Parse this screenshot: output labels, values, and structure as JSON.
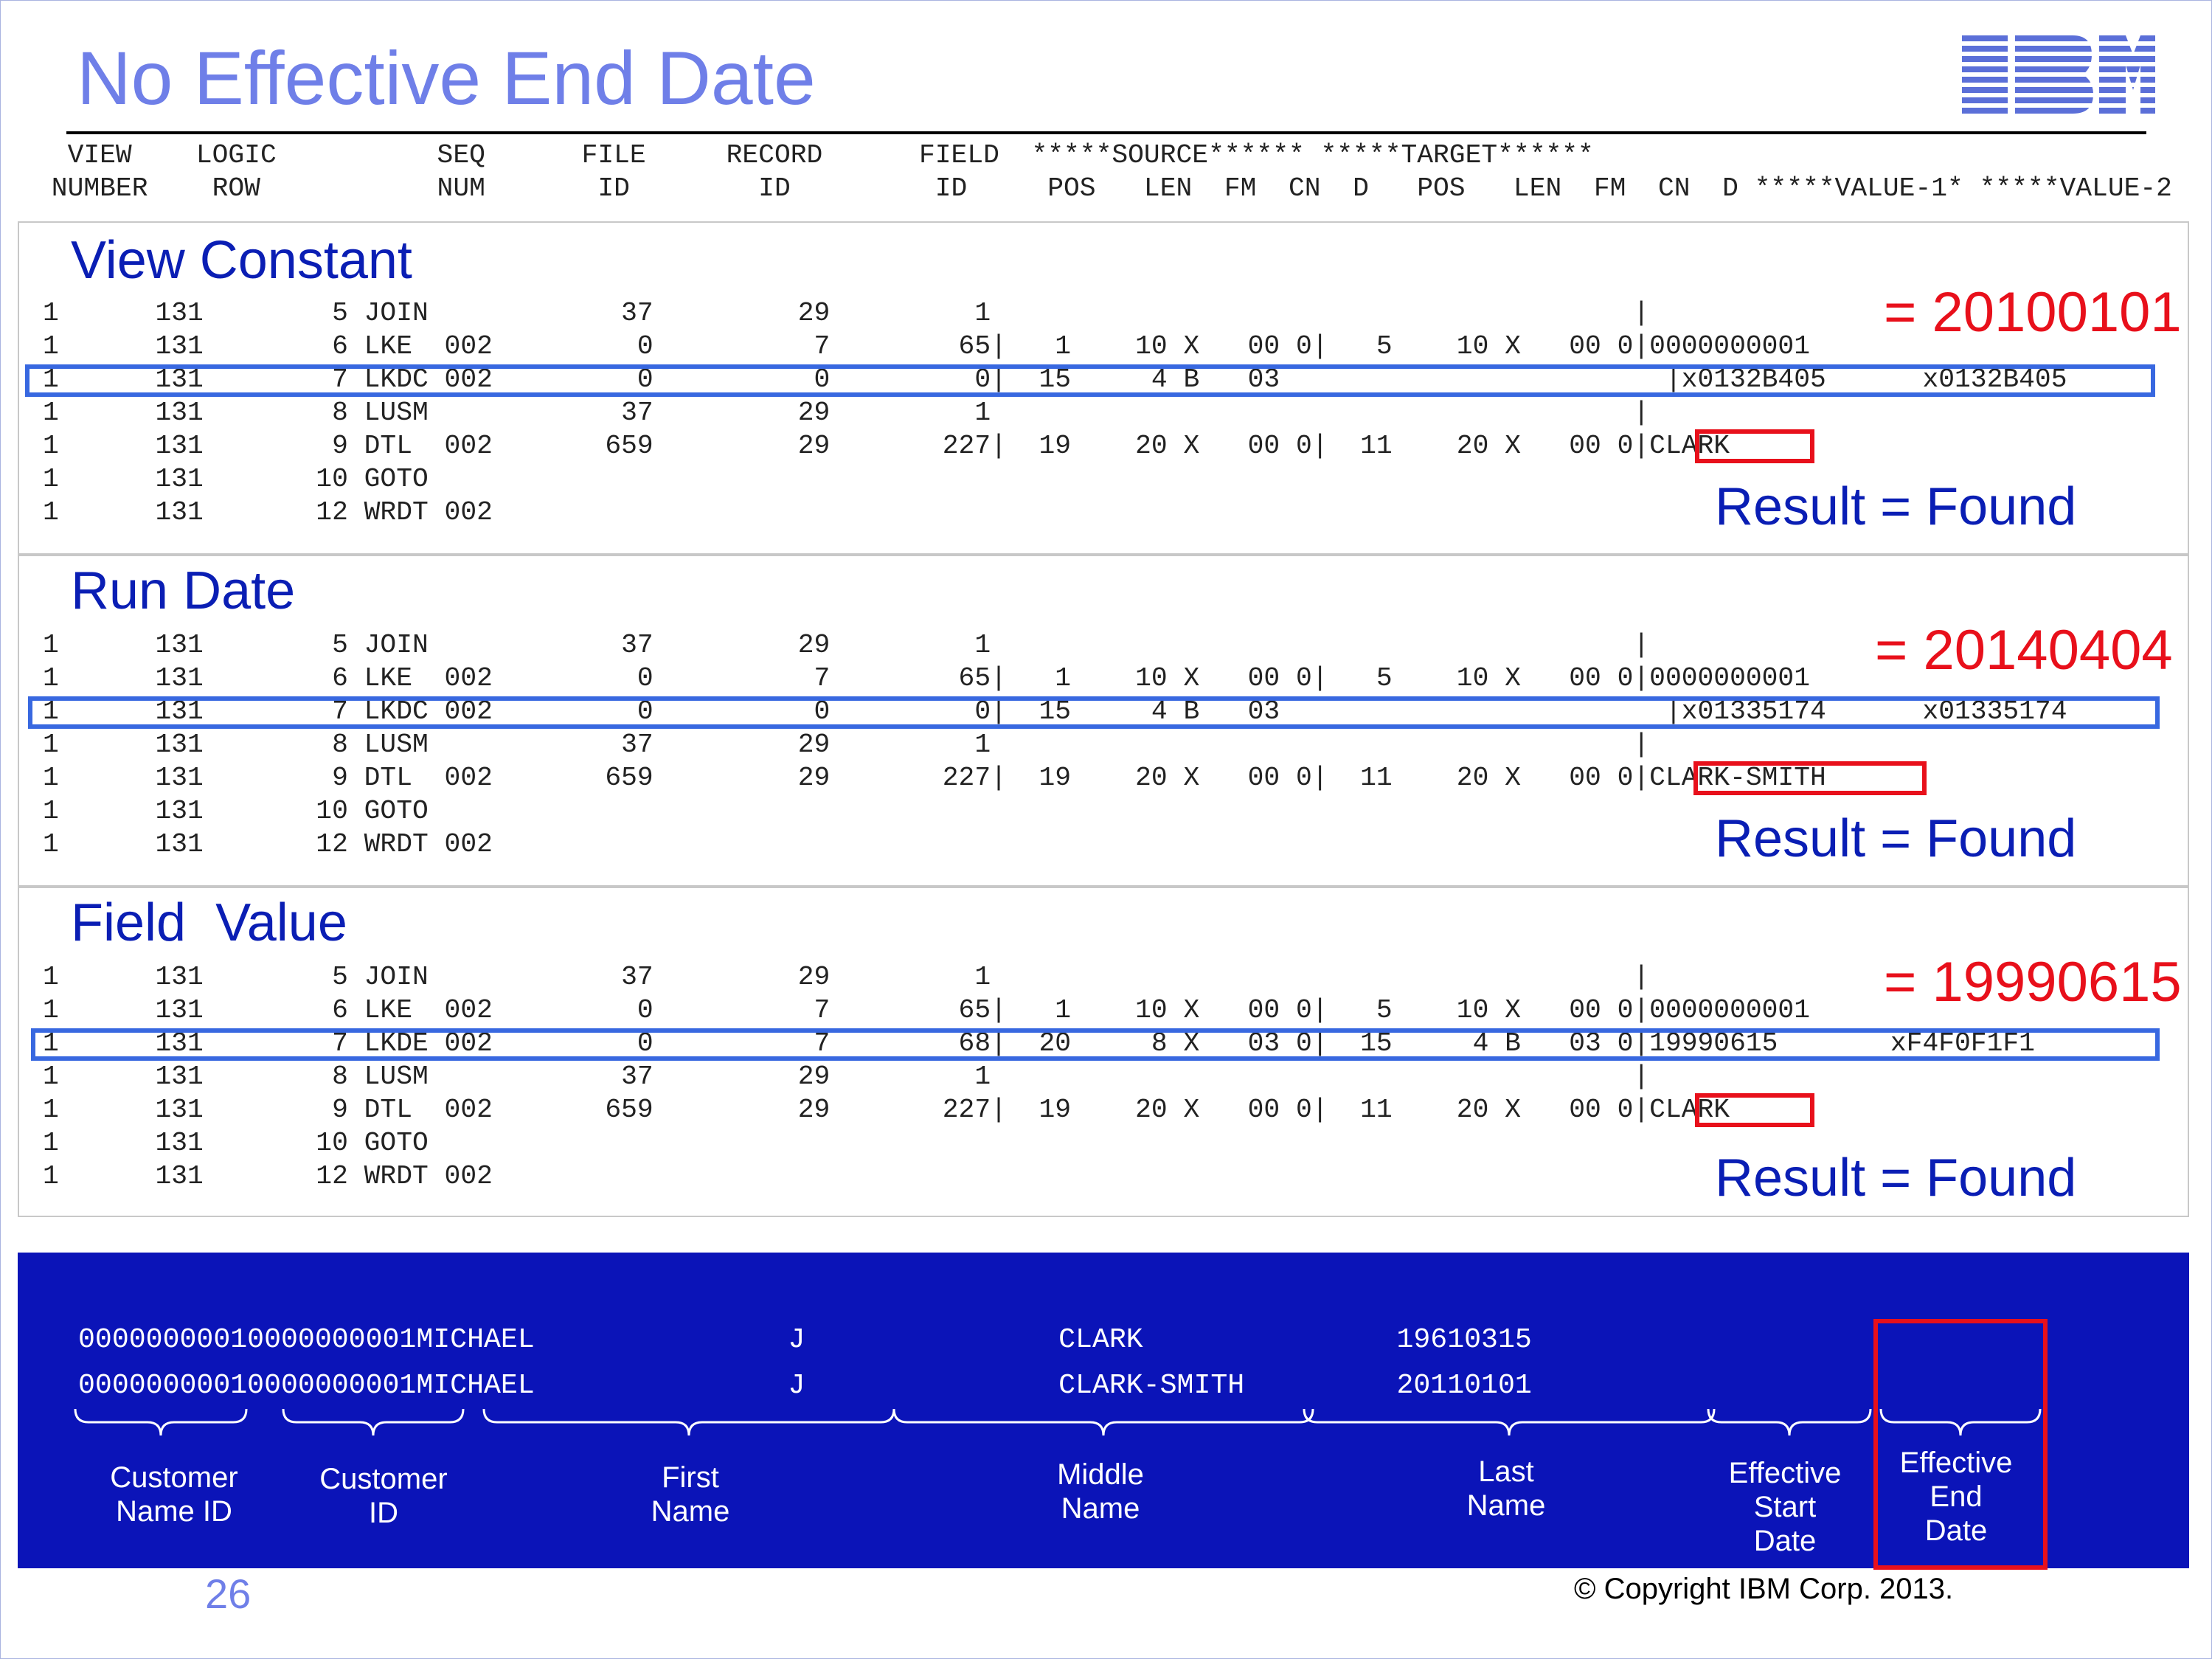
{
  "slide": {
    "title": "No Effective End Date",
    "logo_text": "IBM",
    "page_number": "26",
    "copyright": "© Copyright IBM Corp. 2013."
  },
  "trace_header": {
    "line1": "  VIEW    LOGIC          SEQ      FILE     RECORD      FIELD  *****SOURCE****** *****TARGET******",
    "line2": " NUMBER    ROW           NUM       ID        ID         ID     POS   LEN  FM  CN  D   POS   LEN  FM  CN  D *****VALUE-1* *****VALUE-2"
  },
  "sections": [
    {
      "title": "View Constant",
      "value_annotation": "= 20100101",
      "result": "Result = Found",
      "rows": [
        "1      131        5 JOIN            37         29         1                                        |",
        "1      131        6 LKE  002         0          7        65|   1    10 X   00 0|   5    10 X   00 0|0000000001",
        "1      131        7 LKDC 002         0          0         0|  15     4 B   03                        |x0132B405      x0132B405",
        "1      131        8 LUSM            37         29         1                                        |",
        "1      131        9 DTL  002       659         29       227|  19    20 X   00 0|  11    20 X   00 0|CLARK",
        "1      131       10 GOTO",
        "1      131       12 WRDT 002"
      ]
    },
    {
      "title": "Run Date",
      "value_annotation": "= 20140404",
      "result": "Result = Found",
      "rows": [
        "1      131        5 JOIN            37         29         1                                        |",
        "1      131        6 LKE  002         0          7        65|   1    10 X   00 0|   5    10 X   00 0|0000000001",
        "1      131        7 LKDC 002         0          0         0|  15     4 B   03                        |x01335174      x01335174",
        "1      131        8 LUSM            37         29         1                                        |",
        "1      131        9 DTL  002       659         29       227|  19    20 X   00 0|  11    20 X   00 0|CLARK-SMITH",
        "1      131       10 GOTO",
        "1      131       12 WRDT 002"
      ]
    },
    {
      "title": "Field  Value",
      "value_annotation": "= 19990615",
      "result": "Result = Found",
      "rows": [
        "1      131        5 JOIN            37         29         1                                        |",
        "1      131        6 LKE  002         0          7        65|   1    10 X   00 0|   5    10 X   00 0|0000000001",
        "1      131        7 LKDE 002         0          7        68|  20     8 X   03 0|  15     4 B   03 0|19990615       xF4F0F1F1",
        "1      131        8 LUSM            37         29         1                                        |",
        "1      131        9 DTL  002       659         29       227|  19    20 X   00 0|  11    20 X   00 0|CLARK",
        "1      131       10 GOTO",
        "1      131       12 WRDT 002"
      ]
    }
  ],
  "record_panel": {
    "records": [
      "00000000010000000001MICHAEL               J               CLARK               19610315",
      "00000000010000000001MICHAEL               J               CLARK-SMITH         20110101"
    ],
    "field_labels": [
      "Customer\nName ID",
      "Customer\nID",
      "First\nName",
      "Middle\nName",
      "Last\nName",
      "Effective\nStart\nDate",
      "Effective\nEnd\nDate"
    ]
  },
  "colors": {
    "title": "#6f7fe8",
    "section_title": "#0a1eb4",
    "annotation_red": "#e8101b",
    "row_highlight_blue": "#3868e0",
    "panel_bg": "#0b14b8"
  }
}
